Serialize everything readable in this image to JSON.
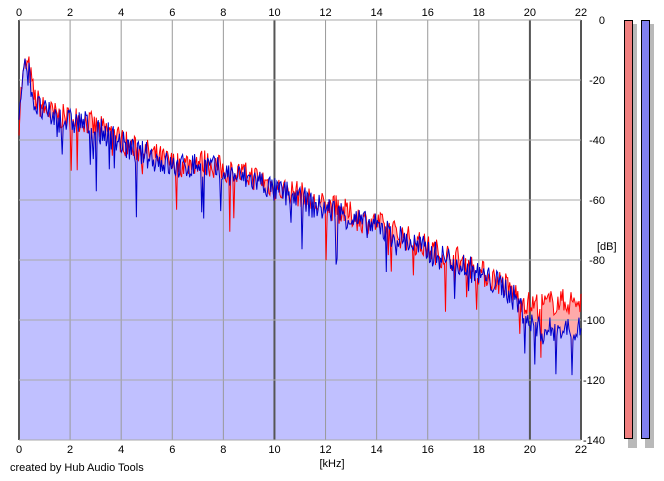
{
  "credit": "created by Hub Audio Tools",
  "chart_data": {
    "type": "area",
    "xlabel": "[kHz]",
    "ylabel": "[dB]",
    "xlim": [
      0,
      22
    ],
    "ylim": [
      -140,
      0
    ],
    "x_ticks": [
      "0",
      "2",
      "4",
      "6",
      "8",
      "10",
      "12",
      "14",
      "16",
      "18",
      "20",
      "22"
    ],
    "y_ticks": [
      "0",
      "-20",
      "-40",
      "-60",
      "-80",
      "-100",
      "-120",
      "-140"
    ],
    "grid": true,
    "series": [
      {
        "color": "#ff0000",
        "fill": "#ffaaaa",
        "points": [
          [
            0,
            -34
          ],
          [
            0.1,
            -22
          ],
          [
            0.25,
            -15
          ],
          [
            0.4,
            -16
          ],
          [
            0.6,
            -26
          ],
          [
            1,
            -30
          ],
          [
            1.5,
            -32
          ],
          [
            2,
            -33
          ],
          [
            2.5,
            -33
          ],
          [
            3,
            -36
          ],
          [
            3.5,
            -37
          ],
          [
            4,
            -40
          ],
          [
            4.5,
            -43
          ],
          [
            5,
            -44
          ],
          [
            5.5,
            -46
          ],
          [
            6,
            -48
          ],
          [
            6.5,
            -48
          ],
          [
            7,
            -47
          ],
          [
            7.5,
            -48
          ],
          [
            8,
            -50
          ],
          [
            8.5,
            -51
          ],
          [
            9,
            -52
          ],
          [
            9.5,
            -53
          ],
          [
            10,
            -56
          ],
          [
            10.5,
            -57
          ],
          [
            11,
            -58
          ],
          [
            11.5,
            -61
          ],
          [
            12,
            -62
          ],
          [
            12.5,
            -63
          ],
          [
            13,
            -65
          ],
          [
            13.5,
            -67
          ],
          [
            14,
            -68
          ],
          [
            14.5,
            -70
          ],
          [
            15,
            -72
          ],
          [
            15.5,
            -74
          ],
          [
            16,
            -76
          ],
          [
            16.5,
            -78
          ],
          [
            17,
            -79
          ],
          [
            17.5,
            -81
          ],
          [
            18,
            -84
          ],
          [
            18.5,
            -86
          ],
          [
            19,
            -88
          ],
          [
            19.5,
            -92
          ],
          [
            20,
            -95
          ],
          [
            20.5,
            -95
          ],
          [
            21,
            -94
          ],
          [
            21.5,
            -94
          ],
          [
            22,
            -94
          ]
        ]
      },
      {
        "color": "#0000cc",
        "fill": "#c0c0ff",
        "points": [
          [
            0,
            -34
          ],
          [
            0.1,
            -22
          ],
          [
            0.25,
            -16
          ],
          [
            0.4,
            -18
          ],
          [
            0.6,
            -28
          ],
          [
            1,
            -31
          ],
          [
            1.5,
            -33
          ],
          [
            2,
            -34
          ],
          [
            2.5,
            -34
          ],
          [
            3,
            -37
          ],
          [
            3.5,
            -38
          ],
          [
            4,
            -41
          ],
          [
            4.5,
            -44
          ],
          [
            5,
            -45
          ],
          [
            5.5,
            -47
          ],
          [
            6,
            -49
          ],
          [
            6.5,
            -49
          ],
          [
            7,
            -48
          ],
          [
            7.5,
            -49
          ],
          [
            8,
            -51
          ],
          [
            8.5,
            -52
          ],
          [
            9,
            -53
          ],
          [
            9.5,
            -54
          ],
          [
            10,
            -57
          ],
          [
            10.5,
            -58
          ],
          [
            11,
            -59
          ],
          [
            11.5,
            -62
          ],
          [
            12,
            -63
          ],
          [
            12.5,
            -64
          ],
          [
            13,
            -66
          ],
          [
            13.5,
            -68
          ],
          [
            14,
            -69
          ],
          [
            14.5,
            -71
          ],
          [
            15,
            -73
          ],
          [
            15.5,
            -75
          ],
          [
            16,
            -77
          ],
          [
            16.5,
            -79
          ],
          [
            17,
            -80
          ],
          [
            17.5,
            -82
          ],
          [
            18,
            -85
          ],
          [
            18.5,
            -87
          ],
          [
            19,
            -89
          ],
          [
            19.5,
            -94
          ],
          [
            20,
            -101
          ],
          [
            20.5,
            -104
          ],
          [
            21,
            -103
          ],
          [
            21.5,
            -103
          ],
          [
            22,
            -103
          ]
        ]
      }
    ]
  },
  "meters": [
    {
      "color": "#f08080"
    },
    {
      "color": "#8080f0"
    }
  ]
}
